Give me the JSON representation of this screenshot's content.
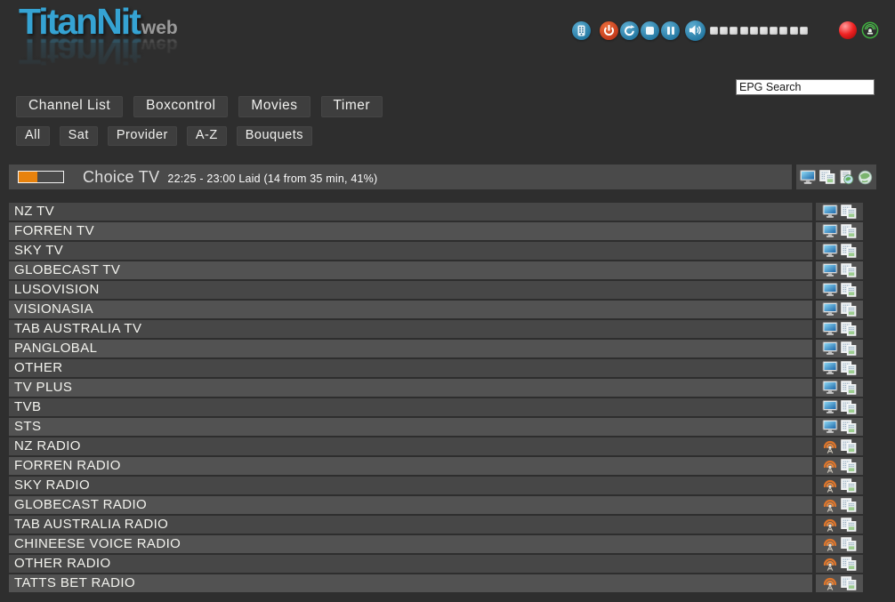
{
  "header": {
    "logo": {
      "title": "TitanNit",
      "subtitle": "web"
    },
    "controls": [
      {
        "name": "remote-control-button"
      },
      {
        "name": "power-button"
      },
      {
        "name": "reload-button"
      },
      {
        "name": "stop-button"
      },
      {
        "name": "pause-button"
      },
      {
        "name": "volume-button"
      }
    ],
    "volume_segments": 10,
    "status_icons": [
      "record-indicator",
      "stream-indicator"
    ],
    "epg_search": {
      "value": "EPG Search"
    }
  },
  "nav": {
    "main_tabs": [
      {
        "label": "Channel List"
      },
      {
        "label": "Boxcontrol"
      },
      {
        "label": "Movies"
      },
      {
        "label": "Timer"
      }
    ],
    "filter_tabs": [
      {
        "label": "All"
      },
      {
        "label": "Sat"
      },
      {
        "label": "Provider"
      },
      {
        "label": "A-Z"
      },
      {
        "label": "Bouquets"
      }
    ]
  },
  "now_playing": {
    "channel": "Choice TV",
    "epg_info": "22:25 - 23:00 Laid (14 from 35 min, 41%)",
    "progress_percent": 41,
    "action_icons": [
      "tv-icon",
      "epg-icon",
      "epg-web-icon",
      "web-icon"
    ]
  },
  "channel_list": {
    "row_action_icons": [
      "channel-type-icon",
      "epg-icon"
    ],
    "rows": [
      {
        "name": "NZ TV",
        "type": "tv"
      },
      {
        "name": "FORREN TV",
        "type": "tv"
      },
      {
        "name": "SKY TV",
        "type": "tv"
      },
      {
        "name": "GLOBECAST TV",
        "type": "tv"
      },
      {
        "name": "LUSOVISION",
        "type": "tv"
      },
      {
        "name": "VISIONASIA",
        "type": "tv"
      },
      {
        "name": "TAB AUSTRALIA TV",
        "type": "tv"
      },
      {
        "name": "PANGLOBAL",
        "type": "tv"
      },
      {
        "name": "OTHER",
        "type": "tv"
      },
      {
        "name": "TV PLUS",
        "type": "tv"
      },
      {
        "name": "TVB",
        "type": "tv"
      },
      {
        "name": "STS",
        "type": "tv"
      },
      {
        "name": "NZ RADIO",
        "type": "radio"
      },
      {
        "name": "FORREN RADIO",
        "type": "radio"
      },
      {
        "name": "SKY RADIO",
        "type": "radio"
      },
      {
        "name": "GLOBECAST RADIO",
        "type": "radio"
      },
      {
        "name": "TAB AUSTRALIA RADIO",
        "type": "radio"
      },
      {
        "name": "CHINEESE VOICE RADIO",
        "type": "radio"
      },
      {
        "name": "OTHER RADIO",
        "type": "radio"
      },
      {
        "name": "TATTS BET RADIO",
        "type": "radio"
      }
    ]
  },
  "colors": {
    "background": "#2e2e2e",
    "logo_blue": "#35a3d3",
    "button_bg": "#3e3e3e",
    "row_dark": "#474747",
    "row_light": "#525252",
    "bar_bg": "#4a4a4a",
    "progress_orange": "#e8820c",
    "control_blue": "#2478a2",
    "power_red": "#c2391b",
    "record_red": "#ef2222",
    "stream_green": "#3fae3f",
    "radio_orange": "#dd752b"
  }
}
